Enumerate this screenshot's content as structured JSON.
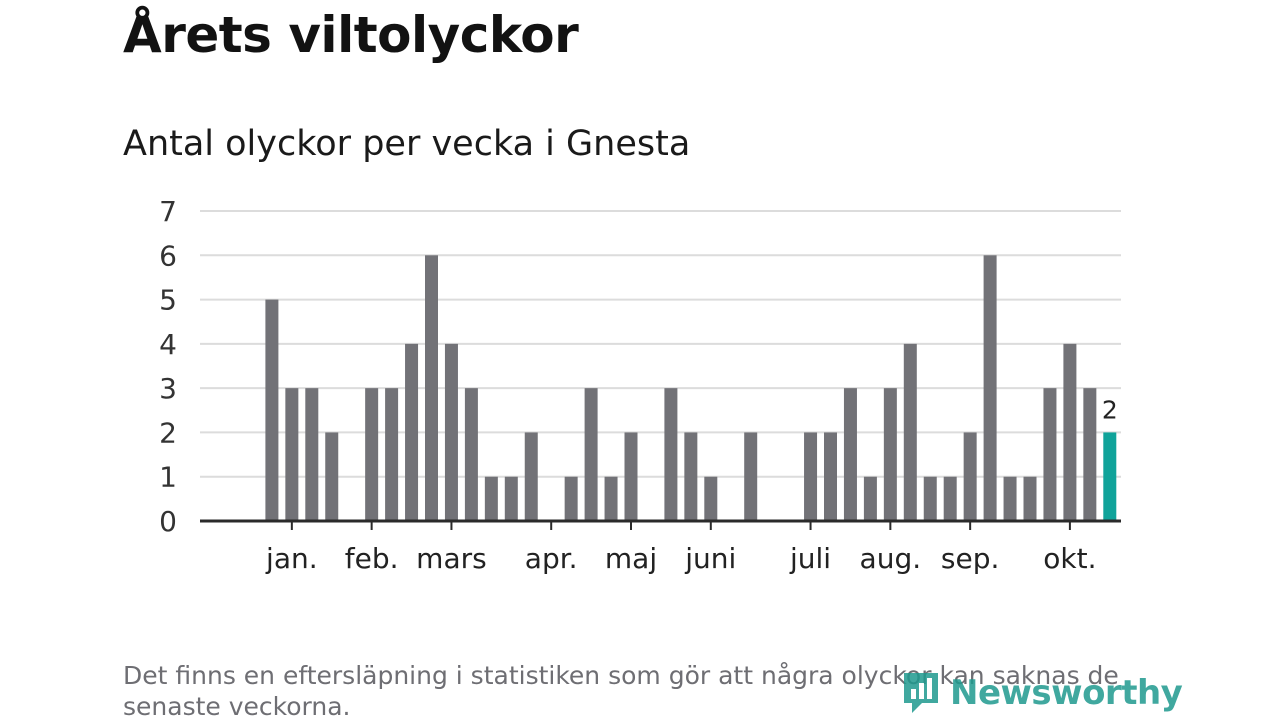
{
  "title": "Årets viltolyckor",
  "subtitle": "Antal olyckor per vecka i Gnesta",
  "footnote": "Det finns en eftersläpning i statistiken som gör att några olyckor kan saknas de senaste veckorna.",
  "logo": {
    "text": "Newsworthy",
    "icon": "newsworthy-logo-icon"
  },
  "colors": {
    "bar": "#727277",
    "highlight": "#10a39a",
    "grid": "#dcdcdc",
    "axis": "#2a2a2a",
    "text": "#222222"
  },
  "chart_data": {
    "type": "bar",
    "title": "Antal olyckor per vecka i Gnesta",
    "xlabel": "",
    "ylabel": "",
    "ylim": [
      0,
      7
    ],
    "yticks": [
      "0",
      "1",
      "2",
      "3",
      "4",
      "5",
      "6",
      "7"
    ],
    "grid": true,
    "weeks": [
      1,
      2,
      3,
      4,
      5,
      6,
      7,
      8,
      9,
      10,
      11,
      12,
      13,
      14,
      15,
      16,
      17,
      18,
      19,
      20,
      21,
      22,
      23,
      24,
      25,
      26,
      27,
      28,
      29,
      30,
      31,
      32,
      33,
      34,
      35,
      36,
      37,
      38,
      39,
      40,
      41,
      42,
      43,
      44,
      45,
      46
    ],
    "values": [
      0,
      0,
      5,
      3,
      3,
      2,
      0,
      3,
      3,
      4,
      6,
      4,
      3,
      1,
      1,
      2,
      0,
      1,
      3,
      1,
      2,
      0,
      3,
      2,
      1,
      0,
      2,
      0,
      0,
      2,
      2,
      3,
      1,
      3,
      4,
      1,
      1,
      2,
      6,
      1,
      1,
      3,
      4,
      3,
      2,
      0
    ],
    "highlight_index": 44,
    "highlight_label": "2",
    "month_labels": [
      {
        "label": "jan.",
        "week": 4
      },
      {
        "label": "feb.",
        "week": 8
      },
      {
        "label": "mars",
        "week": 12
      },
      {
        "label": "apr.",
        "week": 17
      },
      {
        "label": "maj",
        "week": 21
      },
      {
        "label": "juni",
        "week": 25
      },
      {
        "label": "juli",
        "week": 30
      },
      {
        "label": "aug.",
        "week": 34
      },
      {
        "label": "sep.",
        "week": 38
      },
      {
        "label": "okt.",
        "week": 43
      }
    ]
  }
}
